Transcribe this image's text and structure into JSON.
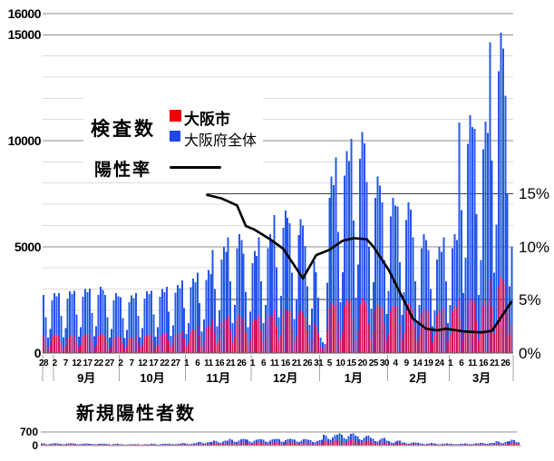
{
  "main_chart": {
    "title": "検査数",
    "legend": {
      "city_label": "大阪市",
      "pref_label": "大阪府全体",
      "rate_label": "陽性率",
      "city_color": "#f00000",
      "pref_color": "#2044ee",
      "rate_color": "#000000"
    },
    "y_left_ticks": [
      {
        "value": 0,
        "label": "0"
      },
      {
        "value": 5000,
        "label": "5000"
      },
      {
        "value": 10000,
        "label": "10000"
      },
      {
        "value": 15000,
        "label": "15000"
      },
      {
        "value": 16000,
        "label": "16000"
      }
    ],
    "y_right_ticks": [
      {
        "pct": 0,
        "label": "0%"
      },
      {
        "pct": 5,
        "label": "5%"
      },
      {
        "pct": 10,
        "label": "10%"
      },
      {
        "pct": 15,
        "label": "15%"
      }
    ],
    "x_ticks": {
      "day_indices": [
        0,
        5,
        10,
        15,
        20,
        25,
        30,
        35,
        40,
        45,
        50,
        55,
        60,
        65,
        70,
        75,
        80,
        85,
        90,
        95,
        100,
        105,
        110,
        115,
        120,
        125,
        130,
        135,
        140,
        145,
        150,
        155,
        160,
        165,
        170,
        175,
        180,
        185,
        190,
        195,
        200,
        205,
        210
      ],
      "labels": [
        "28",
        "2",
        "7",
        "12",
        "17",
        "22",
        "27",
        "2",
        "7",
        "12",
        "17",
        "22",
        "27",
        "1",
        "6",
        "11",
        "16",
        "21",
        "26",
        "1",
        "6",
        "11",
        "16",
        "21",
        "26",
        "31",
        "5",
        "10",
        "15",
        "20",
        "25",
        "30",
        "4",
        "9",
        "14",
        "19",
        "24",
        "1",
        "6",
        "11",
        "16",
        "21",
        "26"
      ]
    },
    "months": {
      "labels": [
        "9月",
        "10月",
        "11月",
        "12月",
        "1月",
        "2月",
        "3月"
      ],
      "boundaries_day": [
        4.5,
        34.5,
        64.5,
        94.5,
        125.5,
        156.5,
        184.5
      ],
      "end_day": 214
    }
  },
  "bottom_chart": {
    "title": "新規陽性者数",
    "y_ticks": [
      {
        "value": 700,
        "label": "700"
      },
      {
        "value": 0,
        "label": "0"
      }
    ]
  },
  "chart_data": [
    {
      "type": "bar+line",
      "title": "検査数",
      "x_unit": "day (8/28 - 3/29, daily)",
      "y_left": {
        "label": "検査数",
        "range": [
          0,
          16000
        ],
        "major_grid": 5000,
        "minor_grid": 1000
      },
      "y_right": {
        "label": "陽性率",
        "range_pct": [
          0,
          16
        ],
        "gridlines_pct": [
          5,
          15
        ]
      },
      "legend_position": "inside-top-left",
      "series": [
        {
          "name": "大阪府全体",
          "color": "#2457e8",
          "values": [
            2720,
            1680,
            700,
            1120,
            2460,
            2800,
            2660,
            2810,
            1740,
            730,
            1160,
            2550,
            2900,
            2760,
            2910,
            1800,
            750,
            1200,
            2640,
            3000,
            2850,
            3010,
            1860,
            780,
            1240,
            2730,
            3100,
            2950,
            2720,
            1680,
            700,
            1120,
            2460,
            2800,
            2660,
            2620,
            1620,
            680,
            1080,
            2380,
            2700,
            2570,
            2810,
            1740,
            730,
            1160,
            2550,
            2900,
            2760,
            2910,
            1800,
            750,
            1200,
            2640,
            3000,
            2850,
            3100,
            1920,
            800,
            1280,
            2820,
            3200,
            3040,
            3400,
            2100,
            880,
            1400,
            3080,
            3500,
            3330,
            3780,
            2340,
            980,
            1560,
            3430,
            3900,
            3710,
            4850,
            3000,
            1250,
            2000,
            4400,
            5000,
            4750,
            5430,
            3360,
            1400,
            2240,
            4930,
            5600,
            5320,
            4660,
            2880,
            1200,
            1920,
            4220,
            4800,
            4560,
            5430,
            3360,
            1400,
            2240,
            4930,
            5600,
            5320,
            6500,
            4020,
            1680,
            2680,
            5900,
            6700,
            6370,
            6110,
            3780,
            1580,
            2520,
            5540,
            6300,
            5990,
            5040,
            3120,
            1300,
            2080,
            4300,
            3800,
            2600,
            700,
            500,
            400,
            3300,
            7300,
            8300,
            7900,
            9220,
            5700,
            2380,
            3800,
            8360,
            9500,
            9030,
            10090,
            6240,
            2600,
            4160,
            9150,
            10400,
            9880,
            8050,
            4980,
            2080,
            3320,
            7300,
            8300,
            7890,
            7080,
            4380,
            1830,
            2920,
            6420,
            7300,
            6940,
            6890,
            4260,
            1780,
            2840,
            6250,
            7100,
            6750,
            5430,
            3360,
            1400,
            2240,
            4930,
            5600,
            5320,
            4850,
            3000,
            1250,
            2000,
            4400,
            5000,
            4750,
            5430,
            3360,
            1400,
            2240,
            4930,
            5600,
            5320,
            10860,
            6720,
            2800,
            4480,
            9860,
            11200,
            10640,
            10570,
            6540,
            2730,
            4360,
            9590,
            10900,
            10360,
            14650,
            9060,
            3780,
            6040,
            13290,
            15100,
            14350,
            12130,
            7500,
            3130,
            5000
          ]
        },
        {
          "name": "大阪市",
          "color": "#d4145a",
          "values": [
            820,
            510,
            210,
            340,
            750,
            850,
            810,
            780,
            480,
            200,
            320,
            700,
            800,
            760,
            820,
            510,
            210,
            340,
            750,
            850,
            810,
            870,
            540,
            230,
            360,
            790,
            900,
            860,
            780,
            480,
            200,
            320,
            700,
            800,
            760,
            730,
            450,
            190,
            300,
            660,
            750,
            710,
            820,
            510,
            210,
            340,
            750,
            850,
            810,
            870,
            540,
            230,
            360,
            790,
            900,
            860,
            920,
            570,
            240,
            380,
            840,
            950,
            900,
            1070,
            660,
            280,
            440,
            970,
            1100,
            1050,
            1260,
            780,
            330,
            520,
            1140,
            1300,
            1240,
            1550,
            960,
            400,
            640,
            1410,
            1600,
            1520,
            1750,
            1080,
            450,
            720,
            1580,
            1800,
            1710,
            1550,
            960,
            400,
            640,
            1410,
            1600,
            1520,
            1750,
            1080,
            450,
            720,
            1580,
            1800,
            1710,
            2040,
            1260,
            530,
            840,
            1850,
            2100,
            2000,
            1940,
            1200,
            500,
            800,
            1760,
            2000,
            1900,
            1650,
            1020,
            430,
            680,
            1400,
            1250,
            900,
            250,
            180,
            150,
            1100,
            2100,
            2300,
            2200,
            2430,
            1500,
            630,
            1000,
            2200,
            2500,
            2380,
            2520,
            1560,
            650,
            1040,
            2290,
            2600,
            2470,
            2230,
            1380,
            580,
            920,
            2020,
            2300,
            2190,
            2130,
            1320,
            550,
            880,
            1940,
            2200,
            2090,
            2230,
            1380,
            580,
            920,
            2020,
            2300,
            2190,
            2040,
            1260,
            530,
            840,
            1850,
            2100,
            2000,
            1940,
            1200,
            500,
            800,
            1760,
            2000,
            1900,
            2130,
            1320,
            550,
            880,
            1940,
            2200,
            2090,
            2520,
            1560,
            650,
            1040,
            2290,
            2600,
            2470,
            2430,
            1500,
            630,
            1000,
            2200,
            2500,
            2380,
            3490,
            2160,
            900,
            1440,
            3170,
            3600,
            3420,
            3200,
            1980,
            830,
            1320
          ]
        }
      ],
      "line": {
        "name": "陽性率",
        "unit": "%",
        "color": "#000000",
        "points": [
          [
            74,
            14.9
          ],
          [
            81,
            14.55
          ],
          [
            88,
            13.9
          ],
          [
            92,
            11.95
          ],
          [
            96,
            11.6
          ],
          [
            103,
            10.7
          ],
          [
            109,
            9.8
          ],
          [
            118,
            7.0
          ],
          [
            124,
            9.2
          ],
          [
            130,
            9.7
          ],
          [
            136,
            10.55
          ],
          [
            141,
            10.8
          ],
          [
            147,
            10.7
          ],
          [
            150,
            10.0
          ],
          [
            157,
            7.8
          ],
          [
            163,
            5.3
          ],
          [
            168,
            3.2
          ],
          [
            174,
            2.25
          ],
          [
            179,
            2.1
          ],
          [
            183,
            2.25
          ],
          [
            191,
            2.0
          ],
          [
            199,
            1.9
          ],
          [
            204,
            2.05
          ],
          [
            208,
            3.3
          ],
          [
            213,
            4.85
          ]
        ]
      }
    },
    {
      "type": "bar",
      "title": "新規陽性者数",
      "x_unit": "day (8/28 - 3/29, daily)",
      "ylim": [
        0,
        700
      ],
      "series": [
        {
          "name": "大阪府全体",
          "color": "#2457e8",
          "values": [
            95,
            86,
            57,
            48,
            71,
            90,
            95,
            90,
            81,
            54,
            45,
            68,
            86,
            90,
            85,
            77,
            51,
            43,
            64,
            81,
            85,
            80,
            72,
            48,
            40,
            60,
            76,
            80,
            70,
            63,
            42,
            35,
            53,
            67,
            70,
            60,
            54,
            36,
            30,
            45,
            57,
            60,
            60,
            54,
            36,
            30,
            45,
            57,
            60,
            70,
            63,
            42,
            35,
            53,
            67,
            70,
            80,
            72,
            48,
            40,
            60,
            76,
            80,
            110,
            99,
            66,
            55,
            83,
            105,
            110,
            180,
            162,
            108,
            90,
            135,
            171,
            180,
            250,
            225,
            150,
            125,
            188,
            238,
            250,
            330,
            297,
            198,
            165,
            248,
            314,
            330,
            310,
            279,
            186,
            155,
            233,
            295,
            310,
            320,
            288,
            192,
            160,
            240,
            304,
            320,
            340,
            306,
            204,
            170,
            255,
            323,
            340,
            320,
            288,
            192,
            160,
            240,
            304,
            320,
            290,
            261,
            174,
            145,
            218,
            276,
            290,
            560,
            504,
            336,
            280,
            420,
            532,
            560,
            630,
            567,
            378,
            315,
            473,
            599,
            630,
            510,
            459,
            306,
            255,
            383,
            485,
            510,
            380,
            342,
            228,
            190,
            285,
            361,
            380,
            250,
            225,
            150,
            125,
            188,
            238,
            250,
            150,
            135,
            90,
            75,
            113,
            143,
            150,
            110,
            99,
            66,
            55,
            83,
            105,
            110,
            85,
            77,
            51,
            43,
            64,
            81,
            85,
            75,
            68,
            45,
            38,
            56,
            71,
            75,
            90,
            81,
            54,
            45,
            68,
            86,
            90,
            130,
            117,
            78,
            65,
            98,
            124,
            130,
            210,
            189,
            126,
            105,
            158,
            200,
            210,
            290,
            261,
            174,
            145
          ]
        },
        {
          "name": "大阪市",
          "color": "#d4145a",
          "values": [
            43,
            39,
            26,
            22,
            32,
            41,
            43,
            41,
            36,
            24,
            20,
            31,
            39,
            41,
            38,
            35,
            23,
            19,
            29,
            36,
            38,
            36,
            32,
            22,
            18,
            27,
            34,
            36,
            32,
            28,
            19,
            16,
            24,
            30,
            32,
            27,
            24,
            16,
            14,
            20,
            26,
            27,
            27,
            24,
            16,
            14,
            20,
            26,
            27,
            32,
            28,
            19,
            16,
            24,
            30,
            32,
            36,
            32,
            22,
            18,
            27,
            34,
            36,
            50,
            45,
            30,
            25,
            37,
            47,
            50,
            81,
            73,
            49,
            41,
            61,
            77,
            81,
            113,
            101,
            68,
            56,
            85,
            107,
            113,
            149,
            134,
            89,
            74,
            112,
            141,
            149,
            140,
            126,
            84,
            70,
            105,
            133,
            140,
            144,
            130,
            86,
            72,
            108,
            137,
            144,
            153,
            138,
            92,
            77,
            115,
            145,
            153,
            144,
            130,
            86,
            72,
            108,
            137,
            144,
            131,
            117,
            78,
            65,
            98,
            124,
            131,
            252,
            227,
            151,
            126,
            189,
            239,
            252,
            284,
            255,
            170,
            142,
            213,
            270,
            284,
            230,
            207,
            138,
            115,
            172,
            218,
            230,
            171,
            154,
            103,
            86,
            128,
            162,
            171,
            113,
            101,
            68,
            56,
            85,
            107,
            113,
            68,
            61,
            41,
            34,
            51,
            64,
            68,
            50,
            45,
            30,
            25,
            37,
            47,
            50,
            38,
            35,
            23,
            19,
            29,
            36,
            38,
            34,
            31,
            20,
            17,
            25,
            32,
            34,
            41,
            36,
            24,
            20,
            31,
            39,
            41,
            59,
            53,
            35,
            29,
            44,
            56,
            59,
            95,
            85,
            57,
            47,
            71,
            90,
            95,
            131,
            117,
            78,
            65
          ]
        }
      ]
    }
  ]
}
